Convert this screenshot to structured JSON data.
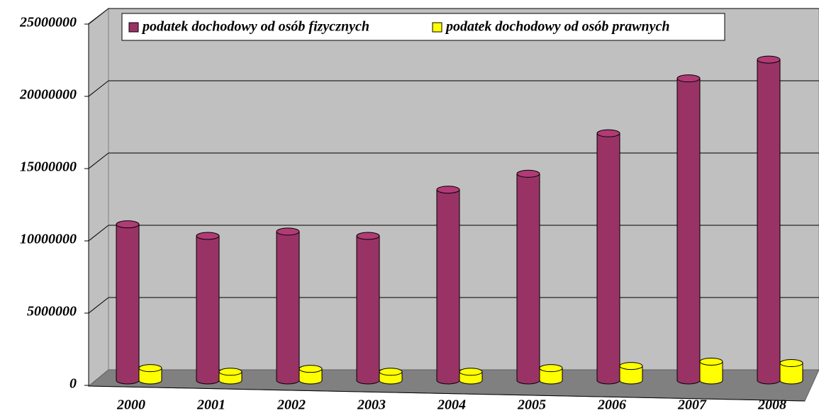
{
  "chart_data": {
    "type": "bar3d",
    "categories": [
      "2000",
      "2001",
      "2002",
      "2003",
      "2004",
      "2005",
      "2006",
      "2007",
      "2008"
    ],
    "series": [
      {
        "name": "podatek dochodowy od osób fizycznych",
        "color": "#993366",
        "values": [
          10800000,
          10000000,
          10300000,
          10000000,
          13200000,
          14300000,
          17100000,
          20900000,
          22200000
        ]
      },
      {
        "name": "podatek dochodowy od osób prawnych",
        "color": "#ffff00",
        "values": [
          850000,
          600000,
          800000,
          600000,
          600000,
          850000,
          1000000,
          1300000,
          1200000
        ]
      }
    ],
    "ylim": [
      0,
      25000000
    ],
    "yticks": [
      0,
      5000000,
      10000000,
      15000000,
      20000000,
      25000000
    ],
    "grid": true,
    "legend": "top"
  }
}
